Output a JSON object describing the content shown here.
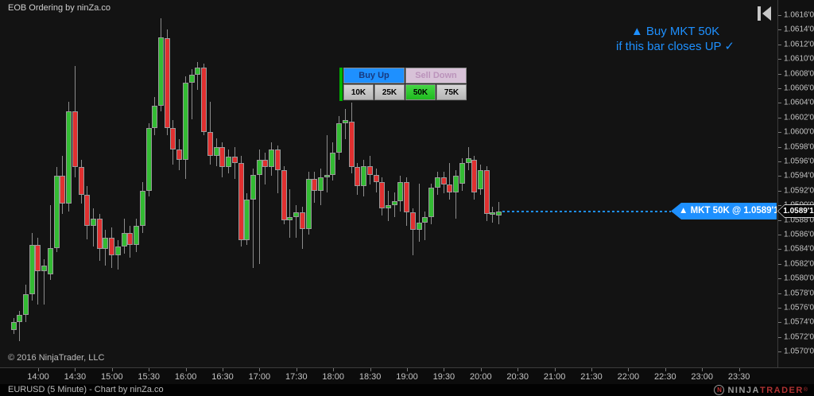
{
  "header": {
    "indicator": "EOB Ordering by ninZa.co"
  },
  "annotation": {
    "line1": "▲ Buy MKT 50K",
    "line2": "if this bar closes UP ✓",
    "color": "#1e90ff"
  },
  "order_panel": {
    "buy_label": "Buy Up",
    "sell_label": "Sell Down",
    "quantities": [
      "10K",
      "25K",
      "50K",
      "75K"
    ],
    "selected_quantity": "50K",
    "buy_color": "#1e90ff",
    "sell_color": "#d8c2d8",
    "selected_color": "#2fc12f",
    "signal_stripe_color": "#00b400"
  },
  "order": {
    "label": "▲ MKT 50K @ 1.0589'1",
    "marker_price": "1.0589'1",
    "line_color": "#1e90ff"
  },
  "price_axis": {
    "labels": [
      "1.0616'0",
      "1.0614'0",
      "1.0612'0",
      "1.0610'0",
      "1.0608'0",
      "1.0606'0",
      "1.0604'0",
      "1.0602'0",
      "1.0600'0",
      "1.0598'0",
      "1.0596'0",
      "1.0594'0",
      "1.0592'0",
      "1.0590'0",
      "1.0588'0",
      "1.0586'0",
      "1.0584'0",
      "1.0582'0",
      "1.0580'0",
      "1.0578'0",
      "1.0576'0",
      "1.0574'0",
      "1.0572'0",
      "1.0570'0"
    ]
  },
  "time_axis": {
    "labels": [
      "14:00",
      "14:30",
      "15:00",
      "15:30",
      "16:00",
      "16:30",
      "17:00",
      "17:30",
      "18:00",
      "18:30",
      "19:00",
      "19:30",
      "20:00",
      "20:30",
      "21:00",
      "21:30",
      "22:00",
      "22:30",
      "23:00",
      "23:30"
    ]
  },
  "footer": {
    "copyright": "© 2016 NinjaTrader, LLC",
    "instrument": "EURUSD (5 Minute) - Chart by ninZa.co",
    "logo": {
      "mark": "N",
      "ninja": "NINJA",
      "trader": "TRADER",
      "reg": "®"
    }
  },
  "colors": {
    "up": "#33bb33",
    "down": "#e03030",
    "wick": "#8c8c8c",
    "accent": "#1e90ff"
  },
  "chart_data": {
    "type": "candlestick",
    "instrument": "EURUSD",
    "period": "5 Minute",
    "last_price": 1.05891,
    "price_max_label": 1.0616,
    "price_min_label": 1.057,
    "price_tick": 0.0002,
    "candles_ohlc": [
      [
        1.0573,
        1.05746,
        1.05724,
        1.0574
      ],
      [
        1.0574,
        1.05756,
        1.05714,
        1.0575
      ],
      [
        1.0575,
        1.05792,
        1.0574,
        1.05778
      ],
      [
        1.05778,
        1.05862,
        1.0577,
        1.05846
      ],
      [
        1.05846,
        1.05856,
        1.05764,
        1.0581
      ],
      [
        1.0581,
        1.05826,
        1.05764,
        1.05818
      ],
      [
        1.05806,
        1.059,
        1.05798,
        1.05842
      ],
      [
        1.05842,
        1.05952,
        1.05836,
        1.0594
      ],
      [
        1.0594,
        1.05968,
        1.05888,
        1.05902
      ],
      [
        1.05902,
        1.06042,
        1.05892,
        1.06028
      ],
      [
        1.06028,
        1.0609,
        1.05938,
        1.05952
      ],
      [
        1.05952,
        1.05962,
        1.05902,
        1.05914
      ],
      [
        1.05914,
        1.05926,
        1.05854,
        1.05872
      ],
      [
        1.05872,
        1.05896,
        1.05844,
        1.05882
      ],
      [
        1.05882,
        1.05888,
        1.05824,
        1.0584
      ],
      [
        1.0584,
        1.05866,
        1.05818,
        1.05856
      ],
      [
        1.05856,
        1.0587,
        1.05814,
        1.05832
      ],
      [
        1.05832,
        1.05852,
        1.05812,
        1.05844
      ],
      [
        1.05844,
        1.05882,
        1.05834,
        1.05862
      ],
      [
        1.05862,
        1.05872,
        1.05828,
        1.05846
      ],
      [
        1.05846,
        1.05882,
        1.05836,
        1.05872
      ],
      [
        1.05872,
        1.05932,
        1.05862,
        1.0592
      ],
      [
        1.0592,
        1.06012,
        1.05912,
        1.06006
      ],
      [
        1.06006,
        1.06048,
        1.05996,
        1.06036
      ],
      [
        1.06036,
        1.06156,
        1.06028,
        1.0613
      ],
      [
        1.06128,
        1.0614,
        1.05996,
        1.06006
      ],
      [
        1.06006,
        1.06016,
        1.05956,
        1.05976
      ],
      [
        1.05976,
        1.0599,
        1.05948,
        1.05962
      ],
      [
        1.05962,
        1.06076,
        1.05936,
        1.06068
      ],
      [
        1.06068,
        1.06086,
        1.06018,
        1.06078
      ],
      [
        1.06078,
        1.06096,
        1.06058,
        1.06088
      ],
      [
        1.06088,
        1.06094,
        1.05996,
        1.06
      ],
      [
        1.06,
        1.06042,
        1.05956,
        1.05968
      ],
      [
        1.05968,
        1.05992,
        1.05954,
        1.0598
      ],
      [
        1.0598,
        1.05986,
        1.05938,
        1.05952
      ],
      [
        1.05952,
        1.05976,
        1.05944,
        1.05966
      ],
      [
        1.05966,
        1.0598,
        1.05936,
        1.05958
      ],
      [
        1.05958,
        1.05968,
        1.05844,
        1.05852
      ],
      [
        1.05852,
        1.05916,
        1.05846,
        1.05908
      ],
      [
        1.05908,
        1.0595,
        1.05814,
        1.05942
      ],
      [
        1.05942,
        1.05976,
        1.0582,
        1.05962
      ],
      [
        1.05962,
        1.05972,
        1.05928,
        1.05952
      ],
      [
        1.05952,
        1.05986,
        1.0594,
        1.05976
      ],
      [
        1.05976,
        1.05982,
        1.05916,
        1.05948
      ],
      [
        1.05948,
        1.05954,
        1.05874,
        1.0588
      ],
      [
        1.0588,
        1.05922,
        1.05856,
        1.05884
      ],
      [
        1.05884,
        1.059,
        1.05856,
        1.0589
      ],
      [
        1.0589,
        1.05898,
        1.0584,
        1.05868
      ],
      [
        1.05868,
        1.05946,
        1.0586,
        1.05936
      ],
      [
        1.05936,
        1.05946,
        1.05904,
        1.0592
      ],
      [
        1.0592,
        1.0595,
        1.059,
        1.05938
      ],
      [
        1.05938,
        1.05996,
        1.05918,
        1.05942
      ],
      [
        1.05942,
        1.05986,
        1.05934,
        1.05972
      ],
      [
        1.05972,
        1.06022,
        1.05962,
        1.06012
      ],
      [
        1.06012,
        1.06032,
        1.0599,
        1.06016
      ],
      [
        1.06014,
        1.0604,
        1.05944,
        1.05952
      ],
      [
        1.05952,
        1.05958,
        1.05914,
        1.05926
      ],
      [
        1.05926,
        1.05962,
        1.05912,
        1.05954
      ],
      [
        1.05954,
        1.05968,
        1.05928,
        1.05942
      ],
      [
        1.05942,
        1.0595,
        1.05918,
        1.05932
      ],
      [
        1.05932,
        1.05938,
        1.05886,
        1.05896
      ],
      [
        1.05896,
        1.0592,
        1.05878,
        1.059
      ],
      [
        1.059,
        1.05918,
        1.05884,
        1.05906
      ],
      [
        1.05906,
        1.0594,
        1.05892,
        1.05932
      ],
      [
        1.05932,
        1.05938,
        1.05872,
        1.0589
      ],
      [
        1.0589,
        1.05896,
        1.05832,
        1.05866
      ],
      [
        1.05866,
        1.0593,
        1.0585,
        1.05876
      ],
      [
        1.05876,
        1.05892,
        1.05852,
        1.05884
      ],
      [
        1.05884,
        1.0593,
        1.05874,
        1.05924
      ],
      [
        1.05924,
        1.05946,
        1.05914,
        1.05938
      ],
      [
        1.05938,
        1.05946,
        1.05916,
        1.05928
      ],
      [
        1.05928,
        1.05958,
        1.05908,
        1.05918
      ],
      [
        1.05918,
        1.05948,
        1.05882,
        1.0594
      ],
      [
        1.0593,
        1.05964,
        1.0592,
        1.05958
      ],
      [
        1.05958,
        1.0598,
        1.05948,
        1.05964
      ],
      [
        1.05962,
        1.05968,
        1.05908,
        1.05918
      ],
      [
        1.05922,
        1.05956,
        1.05914,
        1.05948
      ],
      [
        1.05948,
        1.05954,
        1.05878,
        1.05888
      ],
      [
        1.05888,
        1.05898,
        1.05876,
        1.0589
      ],
      [
        1.05886,
        1.05905,
        1.05874,
        1.05891
      ]
    ]
  }
}
